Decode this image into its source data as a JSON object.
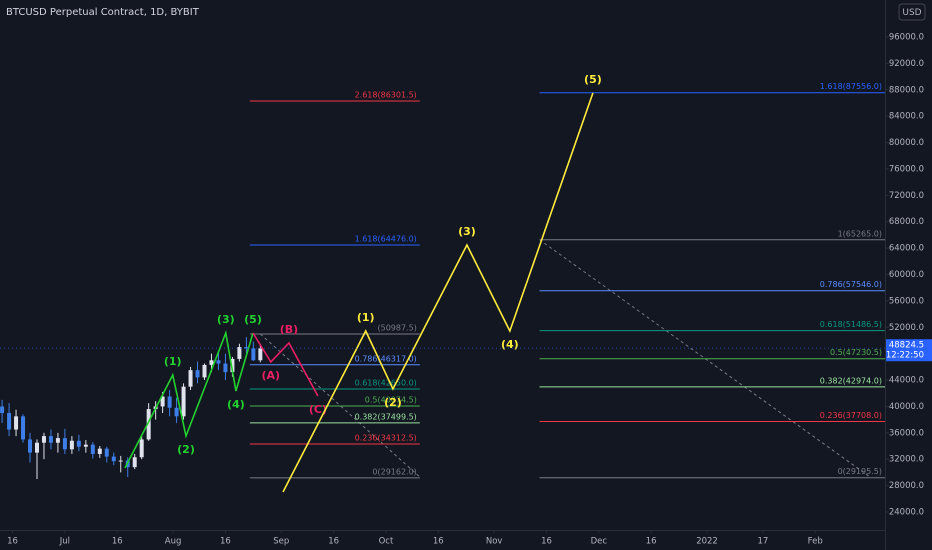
{
  "chart_data": {
    "type": "candlestick",
    "title": "BTCUSD Perpetual Contract, 1D, BYBIT",
    "currency": "USD",
    "last_price": 48824.5,
    "countdown": "12:22:50",
    "last_price_color": "#2962ff",
    "up_color": "#e0e3eb",
    "down_color": "#3d7ee8",
    "xlim": [
      -18.6,
      235
    ],
    "ylim": [
      21270,
      101610
    ],
    "xticks": [
      {
        "value": -15,
        "label": "16"
      },
      {
        "value": 0,
        "label": "Jul"
      },
      {
        "value": 15,
        "label": "16"
      },
      {
        "value": 31,
        "label": "Aug"
      },
      {
        "value": 46,
        "label": "16"
      },
      {
        "value": 62,
        "label": "Sep"
      },
      {
        "value": 77,
        "label": "16"
      },
      {
        "value": 92,
        "label": "Oct"
      },
      {
        "value": 107,
        "label": "16"
      },
      {
        "value": 123,
        "label": "Nov"
      },
      {
        "value": 138,
        "label": "16"
      },
      {
        "value": 153,
        "label": "Dec"
      },
      {
        "value": 168,
        "label": "16"
      },
      {
        "value": 184,
        "label": "2022"
      },
      {
        "value": 200,
        "label": "17"
      },
      {
        "value": 215,
        "label": "Feb"
      }
    ],
    "yticks": [
      {
        "value": 96000,
        "label": "96000.0"
      },
      {
        "value": 92000,
        "label": "92000.0"
      },
      {
        "value": 88000,
        "label": "88000.0"
      },
      {
        "value": 84000,
        "label": "84000.0"
      },
      {
        "value": 80000,
        "label": "80000.0"
      },
      {
        "value": 76000,
        "label": "76000.0"
      },
      {
        "value": 72000,
        "label": "72000.0"
      },
      {
        "value": 68000,
        "label": "68000.0"
      },
      {
        "value": 64000,
        "label": "64000.0"
      },
      {
        "value": 60000,
        "label": "60000.0"
      },
      {
        "value": 56000,
        "label": "56000.0"
      },
      {
        "value": 52000,
        "label": "52000.0"
      },
      {
        "value": 44000,
        "label": "44000.0"
      },
      {
        "value": 40000,
        "label": "40000.0"
      },
      {
        "value": 36000,
        "label": "36000.0"
      },
      {
        "value": 32000,
        "label": "32000.0"
      },
      {
        "value": 28000,
        "label": "28000.0"
      },
      {
        "value": 24000,
        "label": "24000.0"
      }
    ],
    "x": [
      -18,
      -16,
      -14,
      -12,
      -10,
      -8,
      -6,
      -4,
      -2,
      0,
      2,
      4,
      6,
      8,
      10,
      12,
      14,
      16,
      18,
      20,
      22,
      24,
      26,
      28,
      30,
      32,
      34,
      36,
      38,
      40,
      42,
      44,
      46,
      48,
      50,
      52,
      54,
      56
    ],
    "open": [
      40000,
      39000,
      36500,
      38500,
      35000,
      33000,
      34500,
      35500,
      34500,
      35200,
      33500,
      34800,
      33900,
      34200,
      32800,
      33600,
      32400,
      31700,
      31800,
      30800,
      32300,
      35000,
      39600,
      40000,
      41500,
      39800,
      38500,
      43000,
      45500,
      44400,
      46300,
      47000,
      46500,
      45200,
      47200,
      49000,
      48800,
      47000
    ],
    "high": [
      41000,
      40500,
      39500,
      38800,
      36000,
      35000,
      36000,
      36500,
      36000,
      36600,
      35500,
      35700,
      34900,
      34600,
      34000,
      33900,
      33000,
      32500,
      32300,
      32800,
      35500,
      40500,
      40800,
      42200,
      42500,
      41300,
      43500,
      46000,
      46800,
      46500,
      48000,
      48200,
      48000,
      47500,
      49500,
      50500,
      49800,
      49500
    ],
    "low": [
      37500,
      35500,
      35500,
      34500,
      31500,
      29000,
      32000,
      33500,
      33000,
      32800,
      32800,
      33200,
      33000,
      32100,
      32200,
      31500,
      31100,
      30000,
      29300,
      30500,
      32000,
      34800,
      38000,
      39000,
      38500,
      37500,
      38000,
      42500,
      43500,
      44000,
      45200,
      45500,
      44000,
      44500,
      46800,
      48000,
      46900,
      46700
    ],
    "close": [
      39000,
      36500,
      38500,
      35000,
      33000,
      34500,
      35500,
      34500,
      35200,
      33500,
      34800,
      33900,
      34200,
      32800,
      33600,
      32400,
      31700,
      31800,
      30800,
      32300,
      35000,
      39600,
      40000,
      41500,
      39800,
      38500,
      43000,
      45500,
      44400,
      46300,
      47000,
      46500,
      45200,
      47200,
      49000,
      48800,
      47000,
      48800
    ],
    "waves": [
      {
        "color": "#22d12e",
        "points": [
          {
            "x": 17.2,
            "price": 30670
          },
          {
            "x": 30.9,
            "price": 44770,
            "label": "(1)",
            "position": "above"
          },
          {
            "x": 34.7,
            "price": 35520,
            "label": "(2)",
            "position": "below"
          },
          {
            "x": 46.1,
            "price": 51130,
            "label": "(3)",
            "position": "above"
          },
          {
            "x": 49,
            "price": 42340,
            "label": "(4)",
            "position": "below"
          },
          {
            "x": 53.9,
            "price": 51130,
            "label": "(5)",
            "position": "above"
          }
        ]
      },
      {
        "color": "#e91e63",
        "points": [
          {
            "x": 53.9,
            "price": 51130
          },
          {
            "x": 59,
            "price": 46740,
            "label": "(A)",
            "position": "below"
          },
          {
            "x": 64.2,
            "price": 49620,
            "label": "(B)",
            "position": "above"
          },
          {
            "x": 72.5,
            "price": 41580,
            "label": "(C)",
            "position": "below"
          }
        ]
      },
      {
        "color": "#ffeb3b",
        "points": [
          {
            "x": 62.5,
            "price": 27032
          },
          {
            "x": 86.2,
            "price": 51437,
            "label": "(1)",
            "position": "above"
          },
          {
            "x": 94,
            "price": 42645,
            "label": "(2)",
            "position": "below"
          },
          {
            "x": 115.2,
            "price": 64473,
            "label": "(3)",
            "position": "above"
          },
          {
            "x": 127.5,
            "price": 51437,
            "label": "(4)",
            "position": "below"
          },
          {
            "x": 151.3,
            "price": 87513,
            "label": "(5)",
            "position": "above"
          }
        ]
      }
    ],
    "fib_sets": [
      {
        "x": [
          53,
          101.7
        ],
        "diagonal": {
          "x": [
            56,
            102
          ],
          "price": [
            50987.5,
            29162
          ]
        },
        "levels": [
          {
            "label": "2.618(86301.5)",
            "value": 86301.5,
            "color": "#f23645"
          },
          {
            "label": "1.618(64476.0)",
            "value": 64476.0,
            "color": "#2962ff"
          },
          {
            "label": "(50987.5)",
            "value": 50987.5,
            "color": "#787b86"
          },
          {
            "label": "0.786(46317.0)",
            "value": 46317.0,
            "color": "#5b8cff"
          },
          {
            "label": "0.618(42650.0)",
            "value": 42650.0,
            "color": "#089981"
          },
          {
            "label": "0.5(40074.5)",
            "value": 40074.5,
            "color": "#4caf50"
          },
          {
            "label": "0.382(37499.5)",
            "value": 37499.5,
            "color": "#9be39f"
          },
          {
            "label": "0.236(34312.5)",
            "value": 34312.5,
            "color": "#f23645"
          },
          {
            "label": "0(29162.0)",
            "value": 29162.0,
            "color": "#787b86"
          }
        ]
      },
      {
        "x": [
          136,
          235
        ],
        "diagonal": {
          "x": [
            136,
            231
          ],
          "price": [
            65265.0,
            29195.5
          ]
        },
        "levels": [
          {
            "label": "1.618(87556.0)",
            "value": 87556.0,
            "color": "#2962ff"
          },
          {
            "label": "1(65265.0)",
            "value": 65265.0,
            "color": "#787b86"
          },
          {
            "label": "0.786(57546.0)",
            "value": 57546.0,
            "color": "#5b8cff"
          },
          {
            "label": "0.618(51486.5)",
            "value": 51486.5,
            "color": "#089981"
          },
          {
            "label": "0.5(47230.5)",
            "value": 47230.5,
            "color": "#4caf50"
          },
          {
            "label": "0.382(42974.0)",
            "value": 42974.0,
            "color": "#9be39f"
          },
          {
            "label": "0.236(37708.0)",
            "value": 37708.0,
            "color": "#f23645"
          },
          {
            "label": "0(29195.5)",
            "value": 29195.5,
            "color": "#787b86"
          }
        ]
      }
    ]
  }
}
